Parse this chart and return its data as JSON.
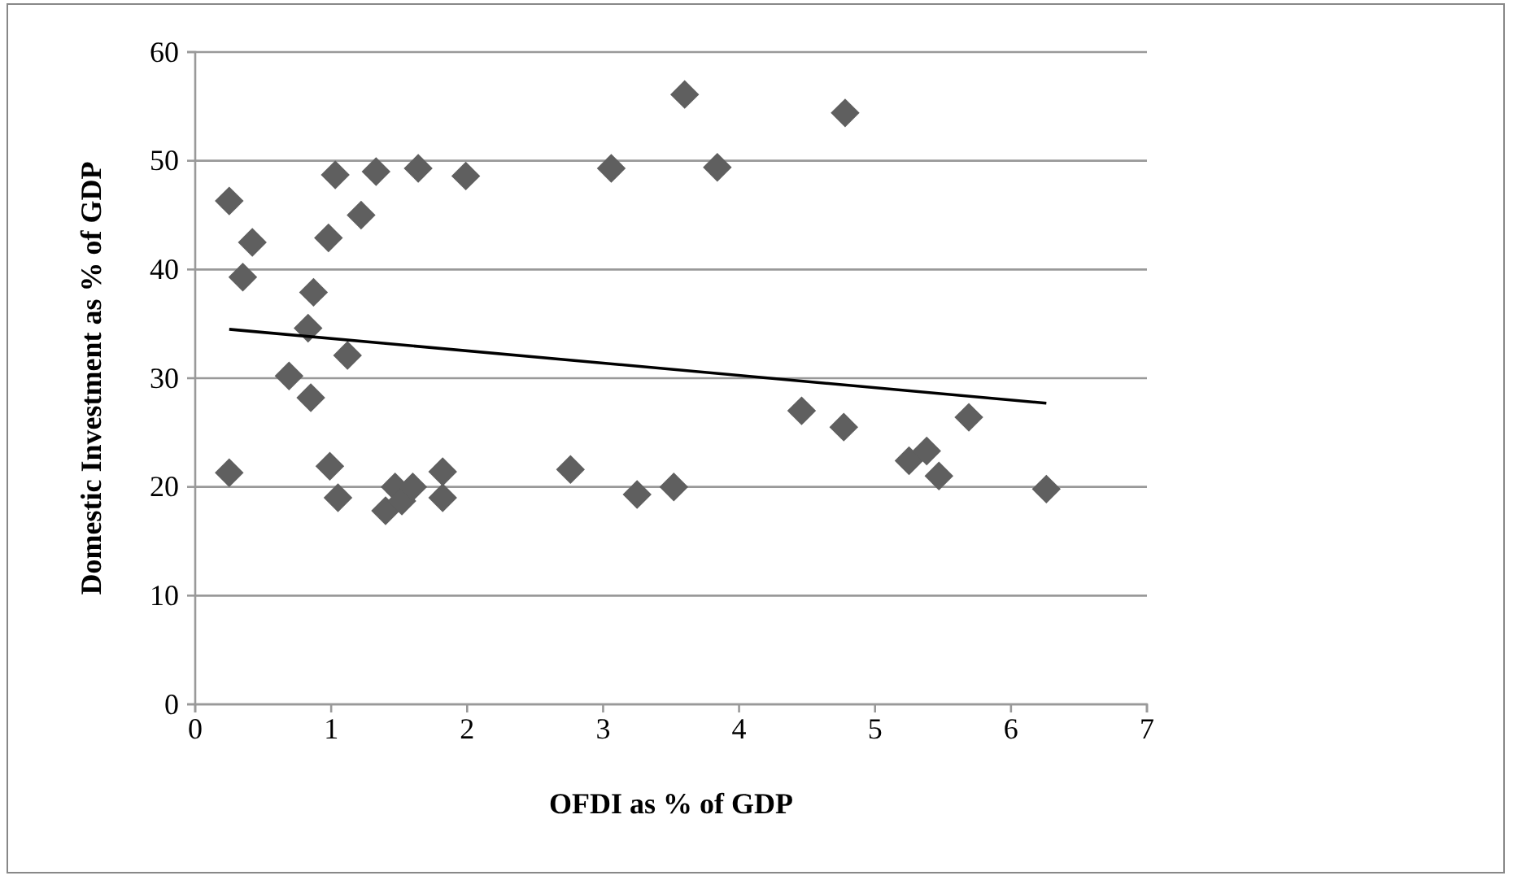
{
  "chart_data": {
    "type": "scatter",
    "xlabel": "OFDI as % of GDP",
    "ylabel": "Domestic Investment as % of GDP",
    "xlim": [
      0,
      7
    ],
    "xticks": [
      0,
      1,
      2,
      3,
      4,
      5,
      6,
      7
    ],
    "ylim": [
      0,
      60
    ],
    "yticks": [
      0,
      10,
      20,
      30,
      40,
      50,
      60
    ],
    "grid": "y",
    "series": [
      {
        "marker": "diamond",
        "color": "#5f5f5f",
        "x": [
          0.25,
          0.35,
          0.42,
          0.25,
          0.69,
          0.83,
          0.87,
          0.85,
          0.98,
          1.03,
          0.99,
          1.05,
          1.12,
          1.22,
          1.33,
          1.4,
          1.47,
          1.52,
          1.6,
          1.64,
          1.82,
          1.82,
          1.99,
          2.76,
          3.06,
          3.25,
          3.52,
          3.6,
          3.84,
          4.46,
          4.77,
          4.78,
          5.25,
          5.38,
          5.47,
          5.69,
          6.26
        ],
        "values": [
          46.3,
          39.3,
          42.5,
          21.3,
          30.2,
          34.6,
          37.9,
          28.2,
          42.9,
          48.7,
          21.9,
          19,
          32.1,
          45,
          49,
          17.8,
          20,
          18.7,
          20,
          49.3,
          21.4,
          19,
          48.6,
          21.6,
          49.3,
          19.3,
          20,
          56.1,
          49.4,
          27,
          25.5,
          54.4,
          22.4,
          23.3,
          21,
          26.4,
          19.8
        ]
      },
      {
        "type": "line",
        "color": "#000000",
        "x": [
          0.25,
          6.26
        ],
        "values": [
          34.5,
          27.7
        ]
      }
    ]
  }
}
